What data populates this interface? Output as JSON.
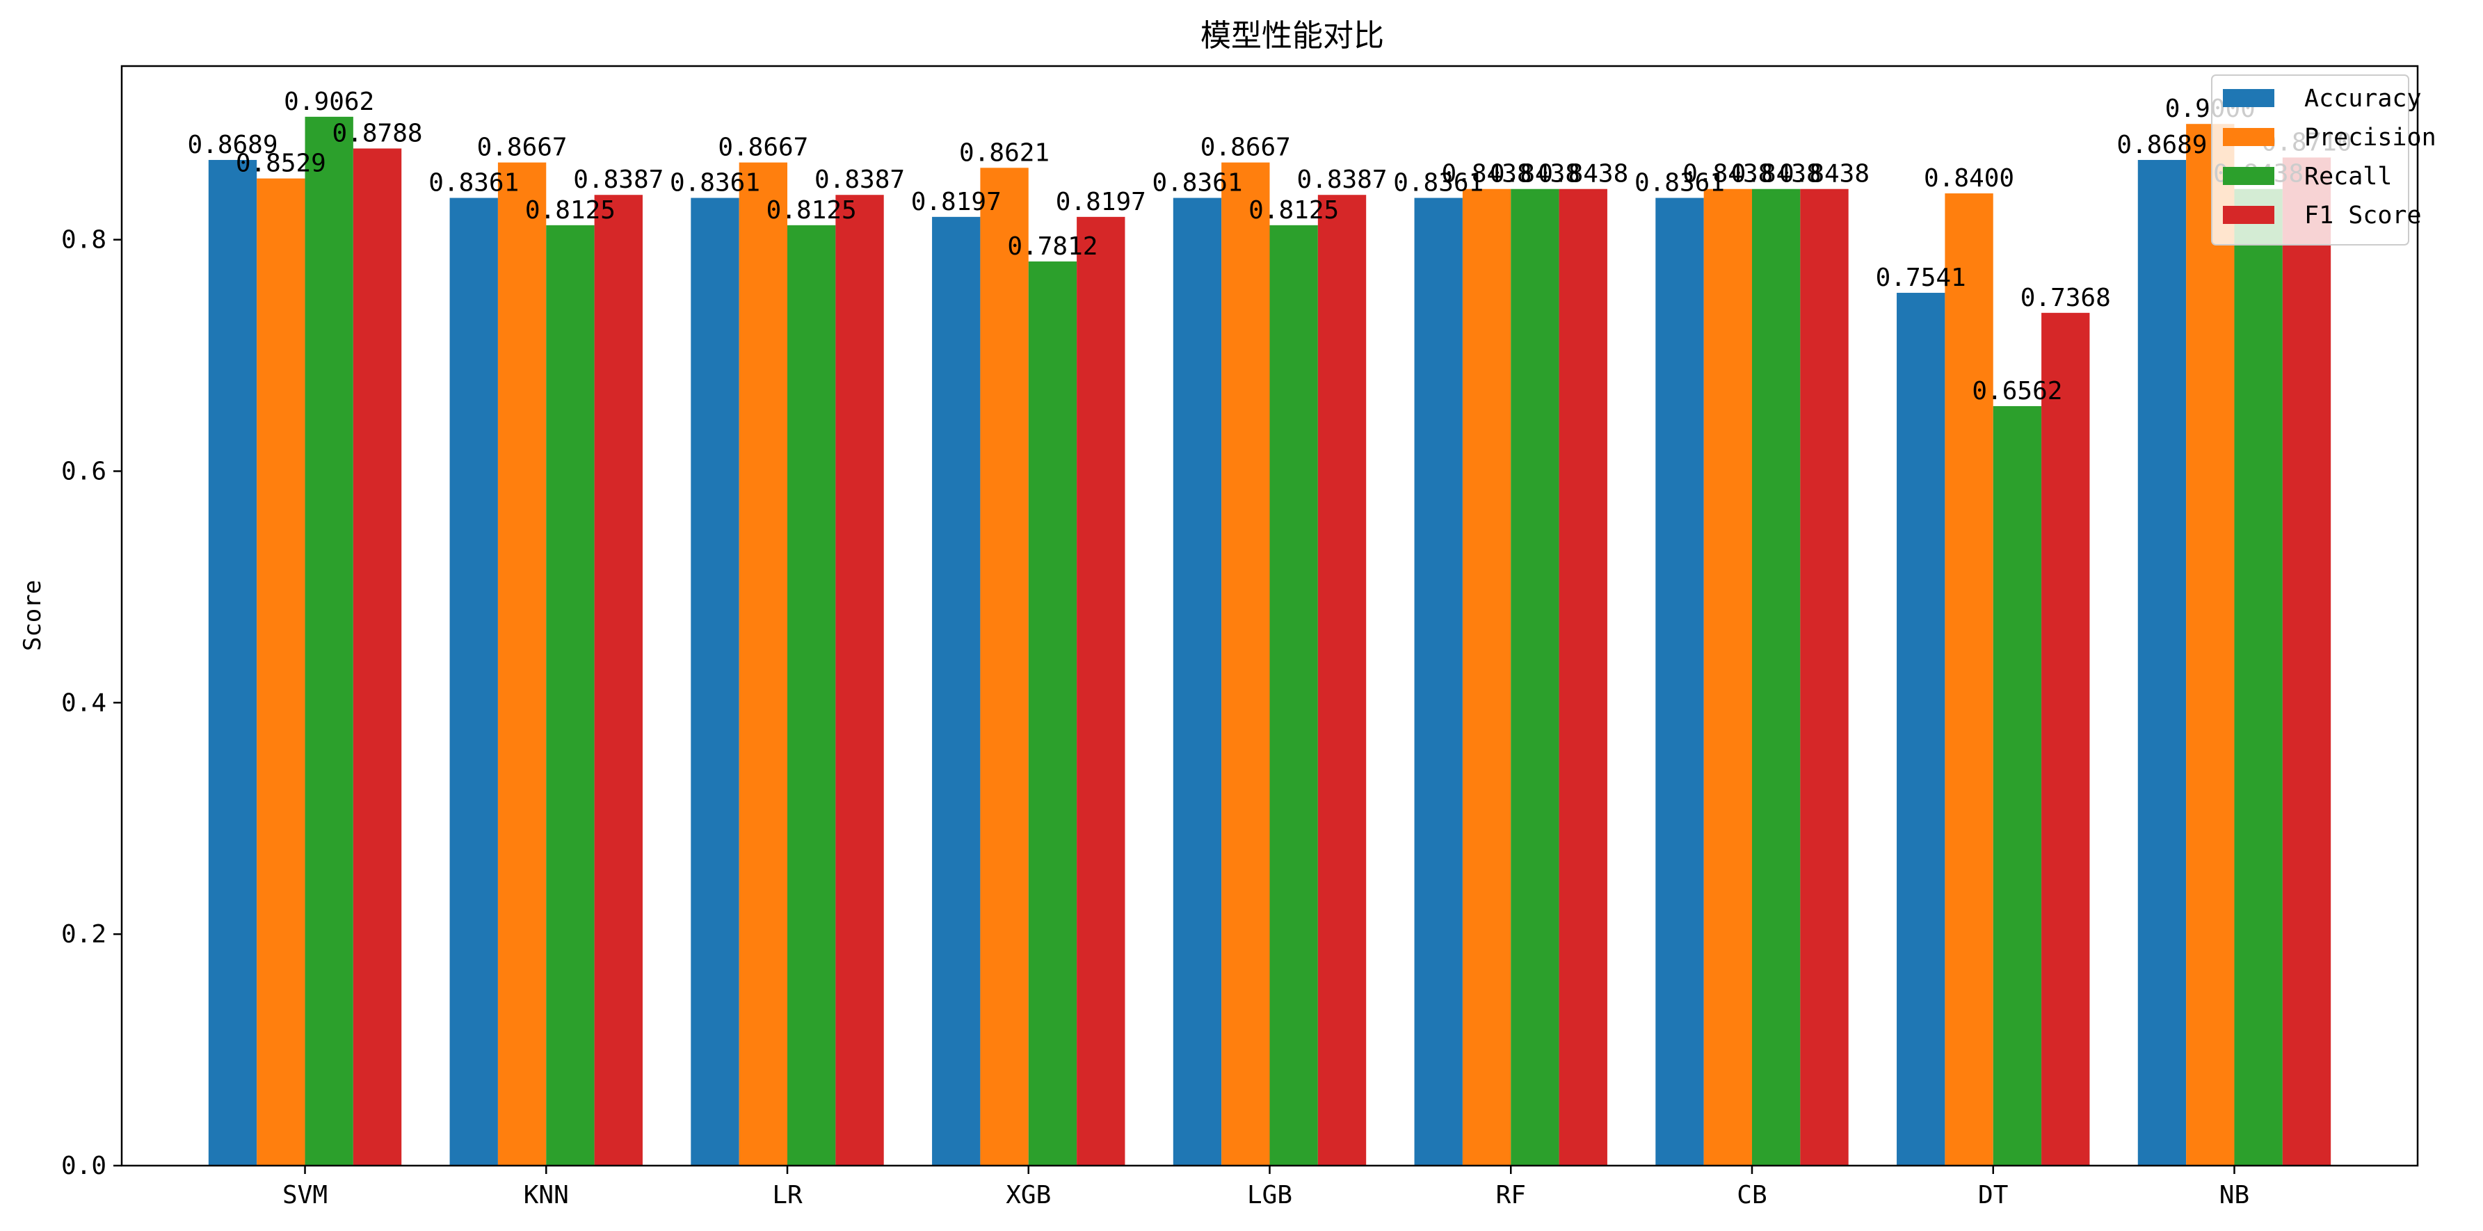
{
  "chart_data": {
    "type": "bar",
    "title": "模型性能对比",
    "xlabel": "",
    "ylabel": "Score",
    "categories": [
      "SVM",
      "KNN",
      "LR",
      "XGB",
      "LGB",
      "RF",
      "CB",
      "DT",
      "NB"
    ],
    "series": [
      {
        "name": "Accuracy",
        "color": "#1f77b4",
        "values": [
          0.8689,
          0.8361,
          0.8361,
          0.8197,
          0.8361,
          0.8361,
          0.8361,
          0.7541,
          0.8689
        ]
      },
      {
        "name": "Precision",
        "color": "#ff7f0e",
        "values": [
          0.8529,
          0.8667,
          0.8667,
          0.8621,
          0.8667,
          0.8438,
          0.8438,
          0.84,
          0.9
        ]
      },
      {
        "name": "Recall",
        "color": "#2ca02c",
        "values": [
          0.9062,
          0.8125,
          0.8125,
          0.7812,
          0.8125,
          0.8438,
          0.8438,
          0.6562,
          0.8438
        ]
      },
      {
        "name": "F1 Score",
        "color": "#d62728",
        "values": [
          0.8788,
          0.8387,
          0.8387,
          0.8197,
          0.8387,
          0.8438,
          0.8438,
          0.7368,
          0.871
        ]
      }
    ],
    "ylim": [
      0,
      0.95
    ],
    "yticks": [
      0.0,
      0.2,
      0.4,
      0.6,
      0.8
    ],
    "ytick_labels": [
      "0.0",
      "0.2",
      "0.4",
      "0.6",
      "0.8"
    ],
    "grid": false,
    "legend_position": "top-right",
    "value_label_decimals": 4
  }
}
